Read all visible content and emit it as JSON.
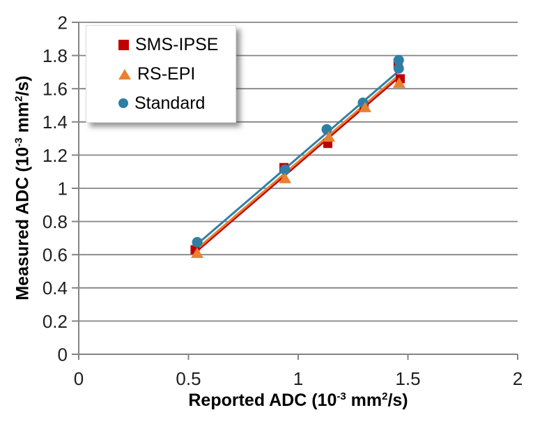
{
  "figure": {
    "background": "#ffffff"
  },
  "axes": {
    "x": {
      "title_parts": {
        "pre": "Reported ADC (10",
        "sup1": "-3",
        "mid": " mm",
        "sup2": "2",
        "post": "/s)"
      }
    },
    "y": {
      "title_parts": {
        "pre": "Measured ADC (10",
        "sup1": "-3",
        "mid": " mm",
        "sup2": "2",
        "post": "/s)"
      }
    }
  },
  "legend": {
    "items": [
      {
        "label": "SMS-IPSE",
        "marker": "square",
        "color": "#c00000"
      },
      {
        "label": "RS-EPI",
        "marker": "triangle",
        "color": "#e8812f"
      },
      {
        "label": "Standard",
        "marker": "circle",
        "color": "#2f7fa5"
      }
    ],
    "position": "top-left-inside"
  },
  "chart_data": {
    "type": "scatter",
    "title": "",
    "xlabel": "Reported ADC (10^-3 mm^2/s)",
    "ylabel": "Measured ADC (10^-3 mm^2/s)",
    "xlim": [
      0,
      2
    ],
    "ylim": [
      0,
      2
    ],
    "x_ticks": [
      0,
      0.5,
      1,
      1.5,
      2
    ],
    "y_ticks": [
      0,
      0.2,
      0.4,
      0.6,
      0.8,
      1,
      1.2,
      1.4,
      1.6,
      1.8,
      2
    ],
    "grid": "horizontal",
    "legend_position": "top-left-inside",
    "series": [
      {
        "name": "SMS-IPSE",
        "marker": "square",
        "color": "#c00000",
        "points": [
          [
            0.53,
            0.63
          ],
          [
            0.935,
            1.125
          ],
          [
            1.135,
            1.27
          ],
          [
            1.3,
            1.49
          ],
          [
            1.465,
            1.66
          ],
          [
            1.455,
            1.755
          ]
        ],
        "trendline": {
          "x1": 0.535,
          "y1": 0.618,
          "x2": 1.455,
          "y2": 1.665
        }
      },
      {
        "name": "RS-EPI",
        "marker": "triangle",
        "color": "#e8812f",
        "points": [
          [
            0.54,
            0.61
          ],
          [
            0.94,
            1.06
          ],
          [
            1.14,
            1.31
          ],
          [
            1.305,
            1.488
          ],
          [
            1.46,
            1.635
          ]
        ],
        "trendline": {
          "x1": 0.535,
          "y1": 0.63,
          "x2": 1.455,
          "y2": 1.678
        }
      },
      {
        "name": "Standard",
        "marker": "circle",
        "color": "#2f7fa5",
        "points": [
          [
            0.54,
            0.675
          ],
          [
            0.94,
            1.112
          ],
          [
            1.13,
            1.355
          ],
          [
            1.295,
            1.515
          ],
          [
            1.458,
            1.722
          ],
          [
            1.458,
            1.772
          ]
        ],
        "trendline": {
          "x1": 0.535,
          "y1": 0.658,
          "x2": 1.455,
          "y2": 1.703
        }
      }
    ],
    "styles": {
      "grid_color": "#848484",
      "axis_color": "#848484",
      "text_color": "#1f1f1f"
    }
  }
}
